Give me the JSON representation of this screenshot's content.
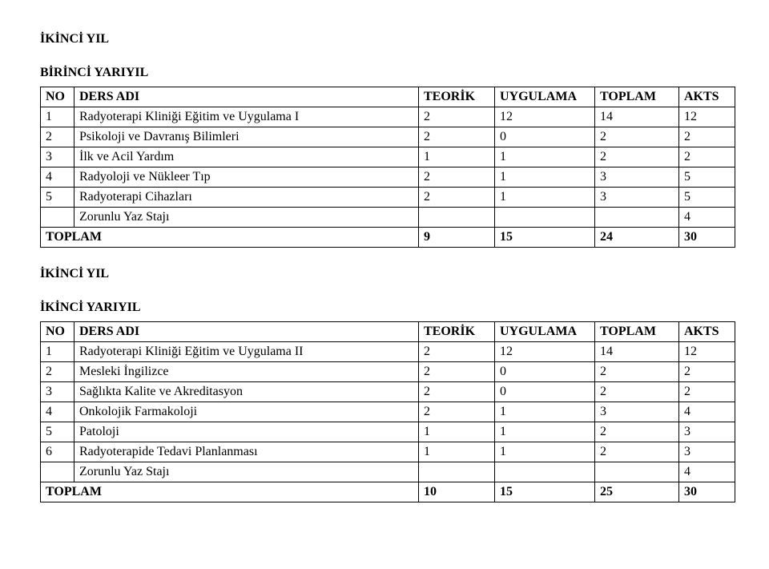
{
  "headings": {
    "h1": "İKİNCİ YIL",
    "h2": "BİRİNCİ YARIYIL",
    "h3": "İKİNCİ YIL",
    "h4": "İKİNCİ YARIYIL"
  },
  "cols": {
    "no": "NO",
    "ders": "DERS ADI",
    "teorik": "TEORİK",
    "uyg": "UYGULAMA",
    "toplam": "TOPLAM",
    "akts": "AKTS"
  },
  "t1": {
    "r1": {
      "no": "1",
      "name": "Radyoterapi Kliniği Eğitim ve Uygulama I",
      "t": "2",
      "u": "12",
      "tot": "14",
      "ak": "12"
    },
    "r2": {
      "no": "2",
      "name": "Psikoloji ve Davranış Bilimleri",
      "t": "2",
      "u": "0",
      "tot": "2",
      "ak": "2"
    },
    "r3": {
      "no": "3",
      "name": "İlk ve Acil Yardım",
      "t": "1",
      "u": "1",
      "tot": "2",
      "ak": "2"
    },
    "r4": {
      "no": "4",
      "name": "Radyoloji ve Nükleer Tıp",
      "t": "2",
      "u": "1",
      "tot": "3",
      "ak": "5"
    },
    "r5": {
      "no": "5",
      "name": "Radyoterapi Cihazları",
      "t": "2",
      "u": "1",
      "tot": "3",
      "ak": "5"
    },
    "staj": {
      "name": "Zorunlu Yaz Stajı",
      "ak": "4"
    },
    "total": {
      "label": "TOPLAM",
      "t": "9",
      "u": "15",
      "tot": "24",
      "ak": "30"
    }
  },
  "t2": {
    "r1": {
      "no": "1",
      "name": "Radyoterapi Kliniği Eğitim ve Uygulama II",
      "t": "2",
      "u": "12",
      "tot": "14",
      "ak": "12"
    },
    "r2": {
      "no": "2",
      "name": "Mesleki İngilizce",
      "t": "2",
      "u": "0",
      "tot": "2",
      "ak": "2"
    },
    "r3": {
      "no": "3",
      "name": "Sağlıkta Kalite ve Akreditasyon",
      "t": "2",
      "u": "0",
      "tot": "2",
      "ak": "2"
    },
    "r4": {
      "no": "4",
      "name": "Onkolojik Farmakoloji",
      "t": "2",
      "u": "1",
      "tot": "3",
      "ak": "4"
    },
    "r5": {
      "no": "5",
      "name": "Patoloji",
      "t": "1",
      "u": "1",
      "tot": "2",
      "ak": "3"
    },
    "r6": {
      "no": "6",
      "name": "Radyoterapide Tedavi Planlanması",
      "t": "1",
      "u": "1",
      "tot": "2",
      "ak": "3"
    },
    "staj": {
      "name": "Zorunlu Yaz Stajı",
      "ak": "4"
    },
    "total": {
      "label": "TOPLAM",
      "t": "10",
      "u": "15",
      "tot": "25",
      "ak": "30"
    }
  }
}
